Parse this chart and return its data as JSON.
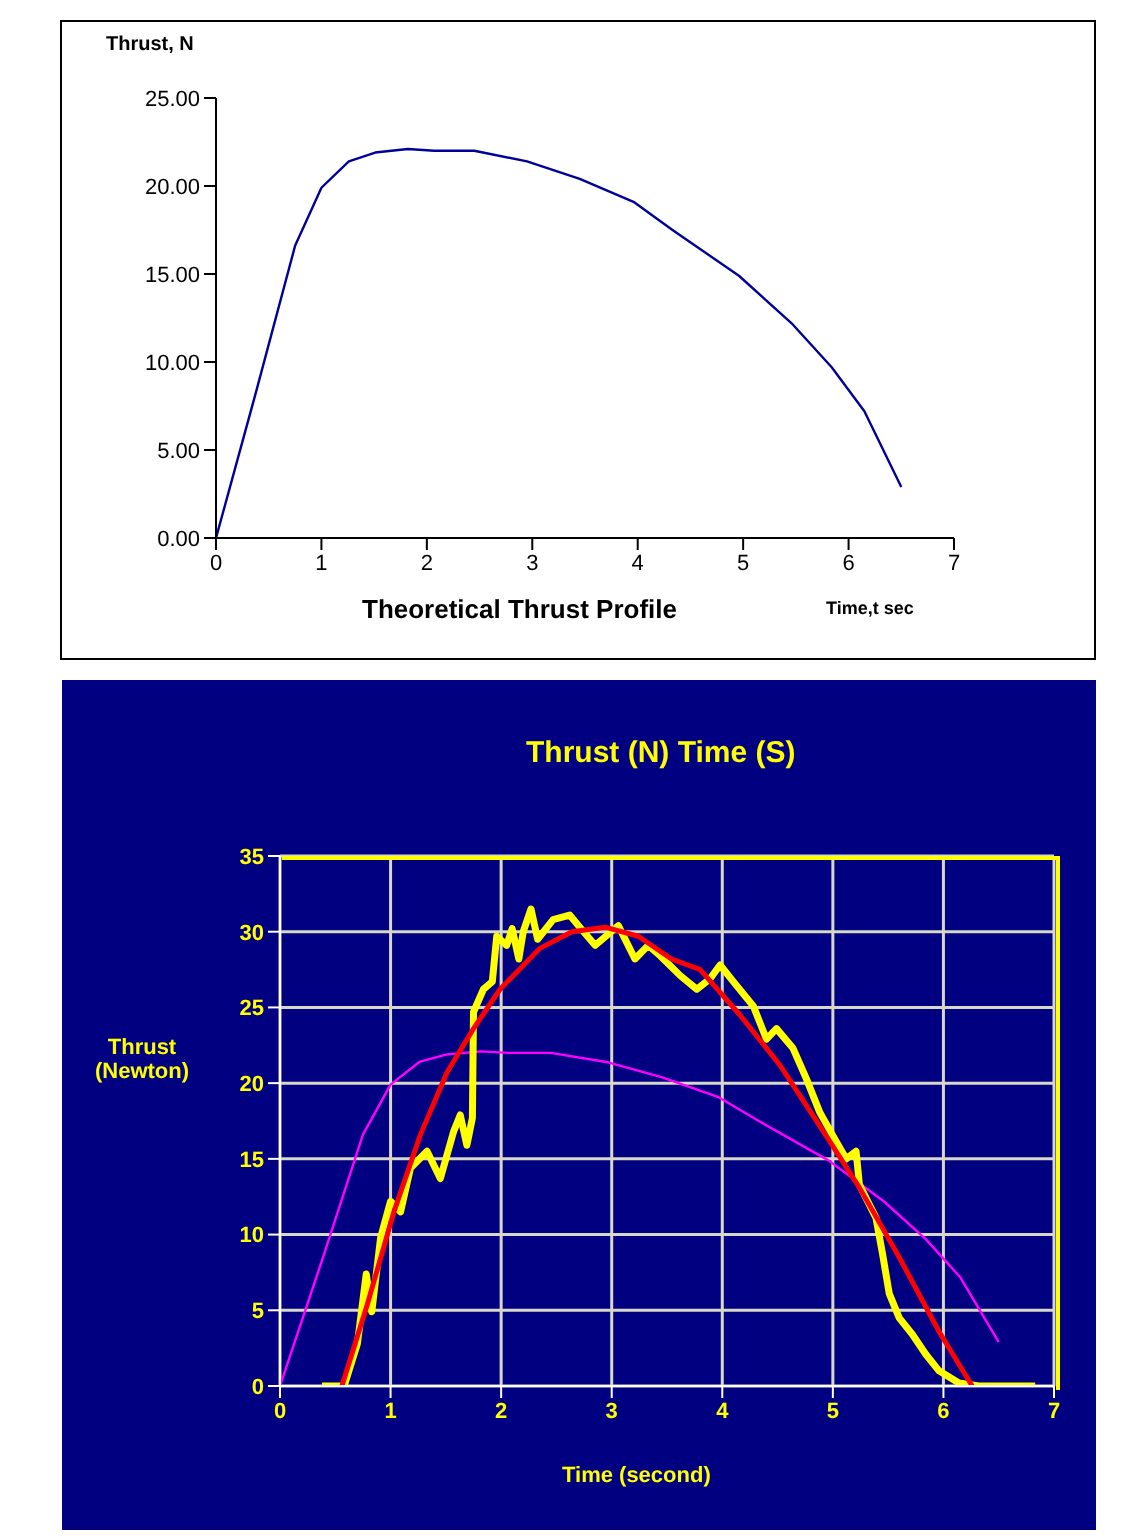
{
  "chart_data": [
    {
      "type": "line",
      "title": "Theoretical  Thrust Profile",
      "xlabel": "Time,t sec",
      "ylabel": "Thrust, N",
      "grid": false,
      "xlim": [
        0,
        7
      ],
      "xticks": [
        0,
        1,
        2,
        3,
        4,
        5,
        6,
        7
      ],
      "ylim": [
        0,
        25
      ],
      "yticks": [
        {
          "value": 0,
          "label": "0.00"
        },
        {
          "value": 5,
          "label": "5.00"
        },
        {
          "value": 10,
          "label": "10.00"
        },
        {
          "value": 15,
          "label": "15.00"
        },
        {
          "value": 20,
          "label": "20.00"
        },
        {
          "value": 25,
          "label": "25.00"
        }
      ],
      "series": [
        {
          "color": "#000099",
          "x": [
            0,
            0.38,
            0.75,
            1.0,
            1.26,
            1.51,
            1.82,
            2.07,
            2.45,
            2.95,
            3.45,
            3.96,
            4.33,
            4.96,
            5.46,
            5.84,
            6.15,
            6.5
          ],
          "values": [
            0,
            8.3,
            16.6,
            19.9,
            21.4,
            21.9,
            22.1,
            22.0,
            22.0,
            21.4,
            20.4,
            19.1,
            17.5,
            14.9,
            12.2,
            9.7,
            7.2,
            2.9
          ]
        }
      ]
    },
    {
      "type": "line",
      "title": "Thrust (N) Time (S)",
      "xlabel": "Time (second)",
      "ylabel": "Thrust (Newton)",
      "grid": true,
      "xlim": [
        0,
        7
      ],
      "xticks": [
        0,
        1,
        2,
        3,
        4,
        5,
        6,
        7
      ],
      "ylim": [
        0,
        35
      ],
      "yticks": [
        0,
        5,
        10,
        15,
        20,
        25,
        30,
        35
      ],
      "series": [
        {
          "color": "#ff00ff",
          "x": [
            0,
            0.38,
            0.75,
            1.0,
            1.26,
            1.51,
            1.82,
            2.07,
            2.45,
            2.95,
            3.45,
            3.96,
            4.33,
            4.96,
            5.46,
            5.84,
            6.15,
            6.5
          ],
          "values": [
            0,
            8.3,
            16.6,
            19.9,
            21.4,
            21.9,
            22.1,
            22.0,
            22.0,
            21.4,
            20.4,
            19.1,
            17.5,
            14.9,
            12.2,
            9.7,
            7.2,
            2.9
          ]
        },
        {
          "color": "#ffff00",
          "x": [
            0.38,
            0.58,
            0.7,
            0.78,
            0.83,
            0.91,
            1.0,
            1.09,
            1.18,
            1.33,
            1.45,
            1.57,
            1.63,
            1.69,
            1.74,
            1.75,
            1.84,
            1.92,
            1.96,
            2.05,
            2.1,
            2.16,
            2.2,
            2.27,
            2.33,
            2.47,
            2.62,
            2.7,
            2.85,
            3.06,
            3.21,
            3.33,
            3.44,
            3.62,
            3.77,
            3.89,
            3.98,
            4.1,
            4.28,
            4.4,
            4.49,
            4.64,
            4.76,
            4.88,
            5.01,
            5.12,
            5.21,
            5.24,
            5.39,
            5.45,
            5.51,
            5.6,
            5.72,
            5.84,
            5.96,
            6.14,
            6.32,
            6.83
          ],
          "values": [
            0,
            0,
            2.8,
            7.4,
            4.9,
            9.8,
            12.2,
            11.5,
            14.4,
            15.5,
            13.7,
            16.8,
            17.9,
            15.9,
            17.7,
            24.7,
            26.2,
            26.7,
            29.7,
            29.1,
            30.2,
            28.2,
            30.0,
            31.5,
            29.5,
            30.8,
            31.1,
            30.4,
            29.1,
            30.4,
            28.2,
            29.1,
            28.4,
            27.1,
            26.2,
            26.9,
            27.8,
            26.7,
            25.1,
            22.9,
            23.6,
            22.3,
            20.3,
            18.1,
            16.4,
            15.0,
            15.5,
            13.3,
            11.1,
            8.7,
            6.1,
            4.5,
            3.4,
            2.1,
            1.0,
            0.2,
            0,
            0
          ]
        },
        {
          "color": "#ff0000",
          "x": [
            0.56,
            0.79,
            1.03,
            1.27,
            1.51,
            1.75,
            1.99,
            2.35,
            2.64,
            2.94,
            3.24,
            3.54,
            3.8,
            4.16,
            4.52,
            4.88,
            5.24,
            5.6,
            5.96,
            6.26
          ],
          "values": [
            0,
            5.4,
            11.5,
            16.6,
            20.7,
            23.6,
            26.2,
            28.9,
            30.0,
            30.3,
            29.7,
            28.2,
            27.5,
            24.5,
            21.2,
            17.2,
            13.1,
            8.5,
            3.6,
            0
          ]
        }
      ]
    }
  ]
}
